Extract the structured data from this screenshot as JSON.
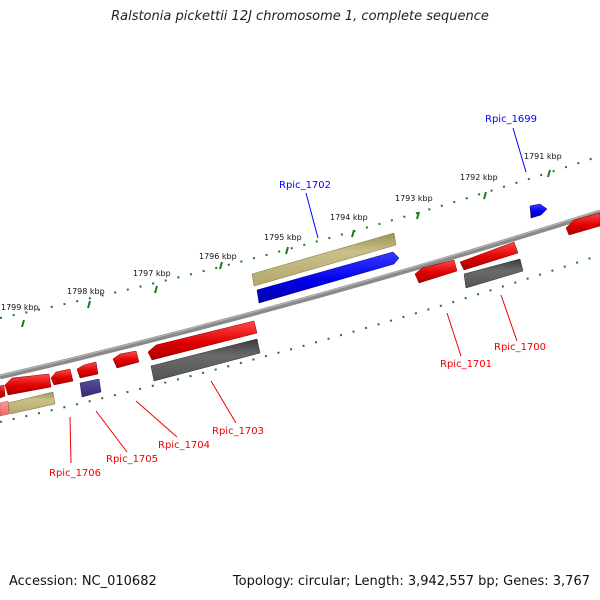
{
  "title": "Ralstonia pickettii 12J chromosome 1, complete sequence",
  "footer": {
    "accession": "Accession: NC_010682",
    "summary": "Topology: circular; Length: 3,942,557 bp; Genes: 3,767"
  },
  "tick_labels": [
    "1791 kbp",
    "1792 kbp",
    "1793 kbp",
    "1794 kbp",
    "1795 kbp",
    "1796 kbp",
    "1797 kbp",
    "1798 kbp",
    "1799 kbp"
  ],
  "genes": [
    {
      "name": "Rpic_1699",
      "strand": "+",
      "color": "#0000ff"
    },
    {
      "name": "Rpic_1700",
      "strand": "-",
      "color": "#ee0000"
    },
    {
      "name": "Rpic_1701",
      "strand": "-",
      "color": "#ee0000"
    },
    {
      "name": "Rpic_1702",
      "strand": "+",
      "color": "#0000ff"
    },
    {
      "name": "Rpic_1703",
      "strand": "-",
      "color": "#ee0000"
    },
    {
      "name": "Rpic_1704",
      "strand": "-",
      "color": "#ee0000"
    },
    {
      "name": "Rpic_1705",
      "strand": "-",
      "color": "#ee0000"
    },
    {
      "name": "Rpic_1706",
      "strand": "-",
      "color": "#ee0000"
    }
  ],
  "colors": {
    "backbone": "#888888",
    "forward_gene": "#0000ff",
    "reverse_gene": "#ee0000",
    "forward_feature": "#bdb377",
    "reverse_feature": "#5a5a5a",
    "misc_feature": "#4a3d8c",
    "tick": "#1a7a1a"
  }
}
